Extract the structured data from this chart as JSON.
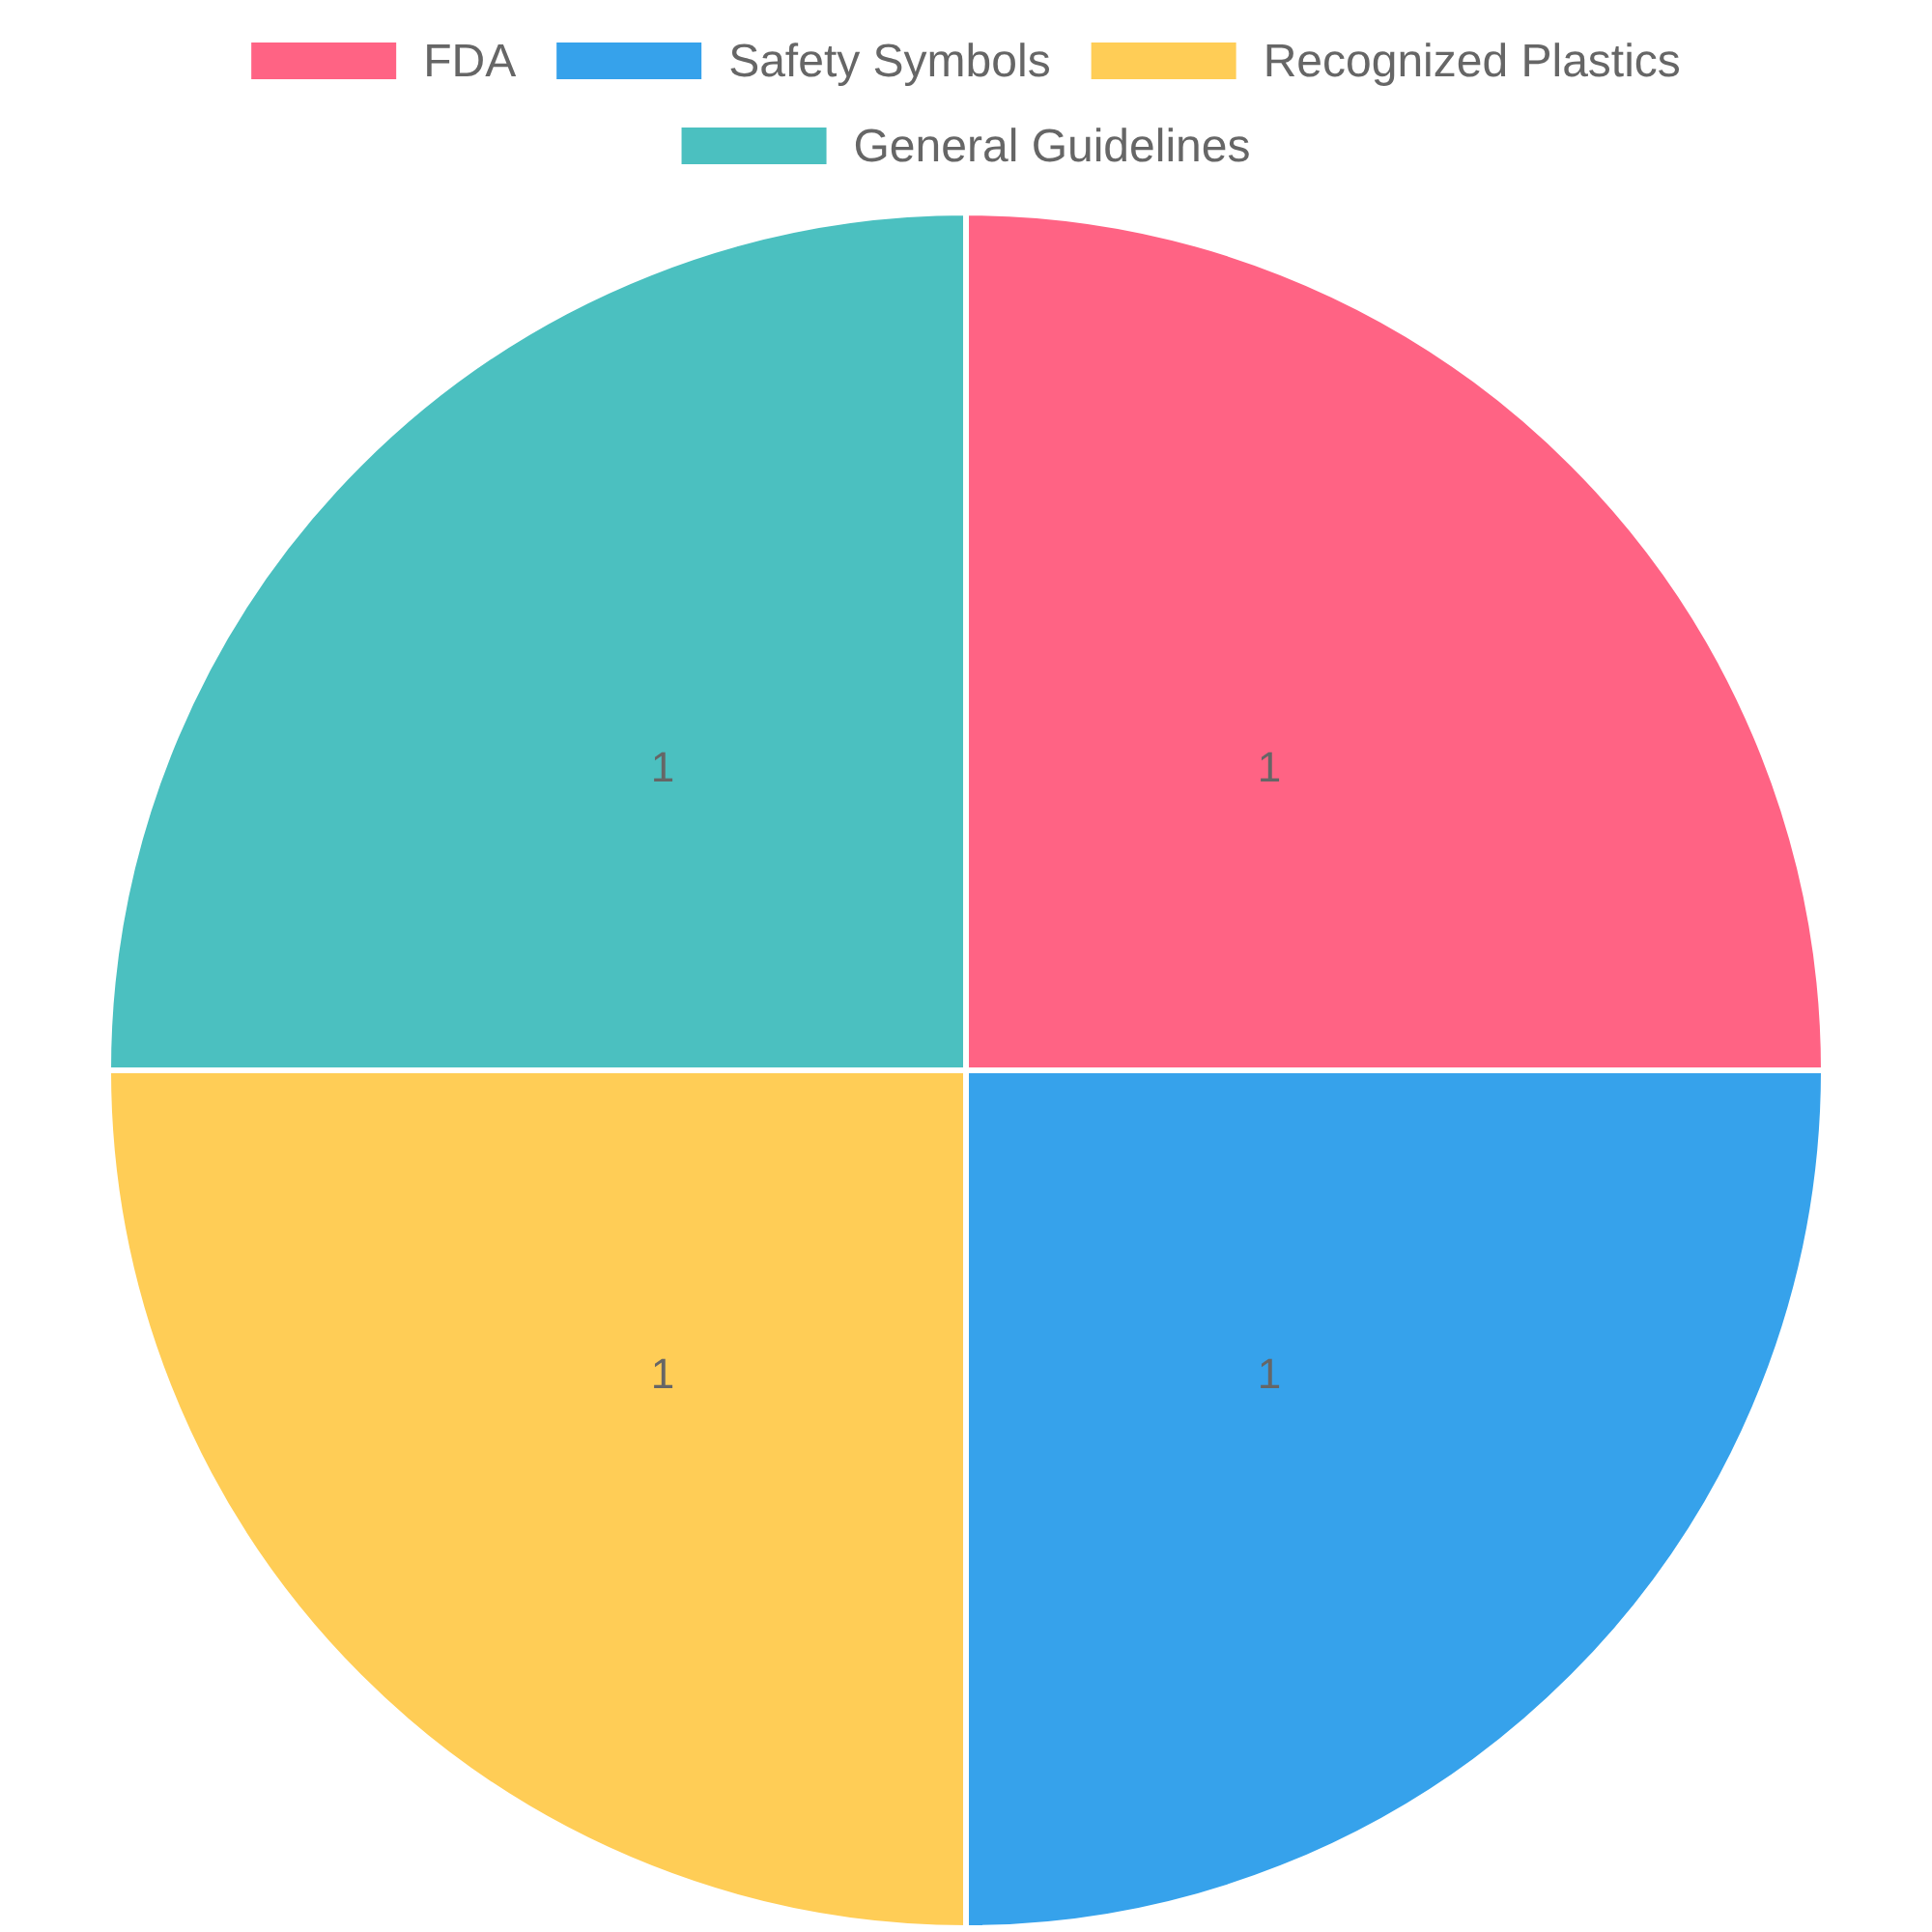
{
  "chart_data": {
    "type": "pie",
    "categories": [
      "FDA",
      "Safety Symbols",
      "Recognized Plastics",
      "General Guidelines"
    ],
    "values": [
      1,
      1,
      1,
      1
    ],
    "colors": [
      "#ff6384",
      "#36a2eb",
      "#ffcd56",
      "#4bc0c0"
    ],
    "data_labels": true,
    "legend": "top"
  }
}
